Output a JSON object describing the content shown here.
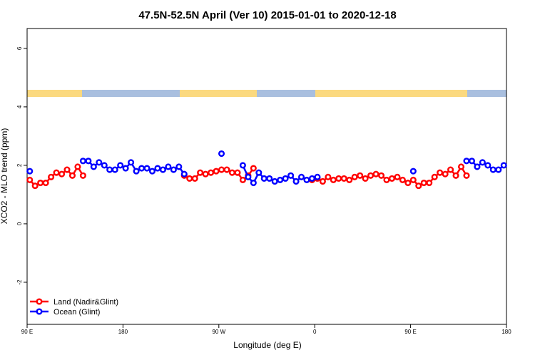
{
  "chart_data": {
    "type": "line",
    "title": "47.5N-52.5N April (Ver 10)   2015-01-01 to 2020-12-18",
    "xlabel": "Longitude (deg E)",
    "ylabel": "XCO2 - MLO trend (ppm)",
    "xlim": [
      90,
      540
    ],
    "ylim": [
      -3.44,
      6.68
    ],
    "xticks": [
      {
        "value": 90,
        "label": "90 E"
      },
      180,
      {
        "value": 270,
        "label": "90 W"
      },
      {
        "value": 360,
        "label": "0"
      },
      {
        "value": 450,
        "label": "90 E"
      },
      {
        "value": 540,
        "label": "180"
      }
    ],
    "yticks": [
      -2,
      0,
      2,
      4,
      6
    ],
    "legend": "bottom-left",
    "x": [
      92.5,
      97.5,
      102.5,
      107.5,
      112.5,
      117.5,
      122.5,
      127.5,
      132.5,
      137.5,
      142.5,
      147.5,
      152.5,
      157.5,
      162.5,
      167.5,
      172.5,
      177.5,
      182.5,
      187.5,
      192.5,
      197.5,
      202.5,
      207.5,
      212.5,
      217.5,
      222.5,
      227.5,
      232.5,
      237.5,
      242.5,
      247.5,
      252.5,
      257.5,
      262.5,
      267.5,
      272.5,
      277.5,
      282.5,
      287.5,
      292.5,
      297.5,
      302.5,
      307.5,
      312.5,
      317.5,
      322.5,
      327.5,
      332.5,
      337.5,
      342.5,
      347.5,
      352.5,
      357.5,
      362.5,
      367.5,
      372.5,
      377.5,
      382.5,
      387.5,
      392.5,
      397.5,
      402.5,
      407.5,
      412.5,
      417.5,
      422.5,
      427.5,
      432.5,
      437.5,
      442.5,
      447.5,
      452.5,
      457.5,
      462.5,
      467.5,
      472.5,
      477.5,
      482.5,
      487.5,
      492.5,
      497.5,
      502.5,
      507.5,
      512.5,
      517.5,
      522.5,
      527.5,
      532.5,
      537.5
    ],
    "series": [
      {
        "name": "Land (Nadir&Glint)",
        "color": "#ff0000",
        "values": [
          1.5,
          1.3,
          1.4,
          1.4,
          1.6,
          1.75,
          1.7,
          1.85,
          1.65,
          1.95,
          1.65,
          null,
          null,
          null,
          null,
          null,
          null,
          null,
          null,
          null,
          null,
          null,
          null,
          null,
          null,
          null,
          null,
          null,
          null,
          1.65,
          1.55,
          1.55,
          1.75,
          1.7,
          1.75,
          1.8,
          1.85,
          1.85,
          1.75,
          1.75,
          1.5,
          1.65,
          1.9,
          null,
          null,
          null,
          null,
          null,
          null,
          null,
          null,
          null,
          null,
          1.5,
          1.55,
          1.45,
          1.6,
          1.5,
          1.55,
          1.55,
          1.5,
          1.6,
          1.65,
          1.55,
          1.65,
          1.7,
          1.65,
          1.5,
          1.55,
          1.6,
          1.5,
          1.4,
          1.5,
          1.3,
          1.4,
          1.4,
          1.6,
          1.75,
          1.7,
          1.85,
          1.65,
          1.95,
          1.65,
          null,
          null,
          null,
          null,
          null,
          null,
          null
        ]
      },
      {
        "name": "Ocean (Glint)",
        "color": "#0000ff",
        "values": [
          1.8,
          null,
          null,
          null,
          null,
          null,
          null,
          null,
          null,
          null,
          2.15,
          2.15,
          1.95,
          2.1,
          2.0,
          1.85,
          1.85,
          2.0,
          1.9,
          2.1,
          1.8,
          1.9,
          1.9,
          1.8,
          1.9,
          1.85,
          1.95,
          1.85,
          1.95,
          1.7,
          null,
          null,
          null,
          null,
          null,
          null,
          2.4,
          null,
          null,
          null,
          2.0,
          1.6,
          1.4,
          1.75,
          1.55,
          1.55,
          1.45,
          1.5,
          1.55,
          1.65,
          1.45,
          1.6,
          1.5,
          1.55,
          1.6,
          null,
          null,
          null,
          null,
          null,
          null,
          null,
          null,
          null,
          null,
          null,
          null,
          null,
          null,
          null,
          null,
          null,
          1.8,
          null,
          null,
          null,
          null,
          null,
          null,
          null,
          null,
          null,
          2.15,
          2.15,
          1.95,
          2.1,
          2.0,
          1.85,
          1.85,
          2.0
        ]
      }
    ]
  }
}
